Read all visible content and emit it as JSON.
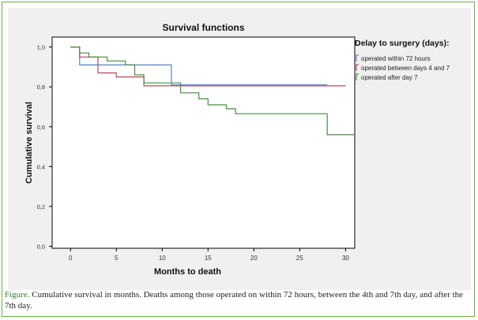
{
  "colors": {
    "frame": "#6fae4b",
    "panel": "#f0f0f0",
    "plot_bg": "#ffffff",
    "caption_lead": "#2e7d32"
  },
  "chart_data": {
    "type": "line",
    "title": "Survival functions",
    "xlabel": "Months to death",
    "ylabel": "Cumulative survival",
    "xlim": [
      -2,
      31
    ],
    "ylim": [
      -0.01,
      1.05
    ],
    "x_ticks": [
      0,
      5,
      10,
      15,
      20,
      25,
      30
    ],
    "y_ticks": [
      0.0,
      0.2,
      0.4,
      0.6,
      0.8,
      1.0
    ],
    "y_tick_labels": [
      "0,0",
      "0,2",
      "0,4",
      "0,6",
      "0,8",
      "1,0"
    ],
    "legend_title": "Delay to surgery (days):",
    "legend_position": "top-right outside",
    "series": [
      {
        "name": "operated within 72 hours",
        "color": "#5b7fc4",
        "x": [
          0,
          1,
          1,
          11,
          11,
          28
        ],
        "y": [
          1.0,
          1.0,
          0.91,
          0.91,
          0.81,
          0.81
        ]
      },
      {
        "name": "operated between days 4 and 7",
        "color": "#b5485a",
        "x": [
          0,
          1,
          1,
          3,
          3,
          5,
          5,
          8,
          8,
          30
        ],
        "y": [
          1.0,
          1.0,
          0.95,
          0.95,
          0.87,
          0.87,
          0.85,
          0.85,
          0.805,
          0.805
        ]
      },
      {
        "name": "operated after day 7",
        "color": "#4a8c3f",
        "x": [
          0,
          1,
          1,
          2,
          2,
          4,
          4,
          6,
          6,
          7,
          7,
          8,
          8,
          12,
          12,
          14,
          14,
          15,
          15,
          17,
          17,
          18,
          18,
          28,
          28,
          31
        ],
        "y": [
          1.0,
          1.0,
          0.97,
          0.97,
          0.95,
          0.95,
          0.93,
          0.93,
          0.91,
          0.91,
          0.86,
          0.86,
          0.82,
          0.82,
          0.77,
          0.77,
          0.74,
          0.74,
          0.71,
          0.71,
          0.69,
          0.69,
          0.665,
          0.665,
          0.56,
          0.56
        ]
      }
    ]
  },
  "caption": {
    "lead": "Figure.",
    "text": " Cumulative survival in months. Deaths among those operated on within 72 hours, between the 4th and 7th day, and after the 7th day."
  }
}
